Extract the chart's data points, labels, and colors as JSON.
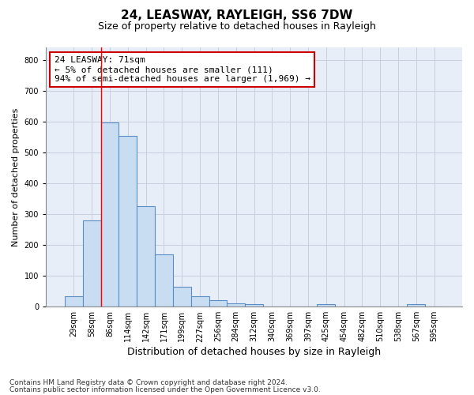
{
  "title1": "24, LEASWAY, RAYLEIGH, SS6 7DW",
  "title2": "Size of property relative to detached houses in Rayleigh",
  "xlabel": "Distribution of detached houses by size in Rayleigh",
  "ylabel": "Number of detached properties",
  "footer1": "Contains HM Land Registry data © Crown copyright and database right 2024.",
  "footer2": "Contains public sector information licensed under the Open Government Licence v3.0.",
  "categories": [
    "29sqm",
    "58sqm",
    "86sqm",
    "114sqm",
    "142sqm",
    "171sqm",
    "199sqm",
    "227sqm",
    "256sqm",
    "284sqm",
    "312sqm",
    "340sqm",
    "369sqm",
    "397sqm",
    "425sqm",
    "454sqm",
    "482sqm",
    "510sqm",
    "538sqm",
    "567sqm",
    "595sqm"
  ],
  "values": [
    35,
    280,
    596,
    553,
    325,
    170,
    65,
    35,
    20,
    12,
    8,
    0,
    0,
    0,
    8,
    0,
    0,
    0,
    0,
    8,
    0
  ],
  "bar_color": "#c9ddf2",
  "bar_edge_color": "#5b8ec4",
  "grid_color": "#c8d0e0",
  "background_color": "#e8eef8",
  "redline_x": 1.5,
  "ylim": [
    0,
    840
  ],
  "yticks": [
    0,
    100,
    200,
    300,
    400,
    500,
    600,
    700,
    800
  ],
  "annotation_text_line1": "24 LEASWAY: 71sqm",
  "annotation_text_line2": "← 5% of detached houses are smaller (111)",
  "annotation_text_line3": "94% of semi-detached houses are larger (1,969) →",
  "title1_fontsize": 11,
  "title2_fontsize": 9,
  "ylabel_fontsize": 8,
  "xlabel_fontsize": 9,
  "tick_fontsize": 7,
  "annot_fontsize": 8,
  "footer_fontsize": 6.5
}
